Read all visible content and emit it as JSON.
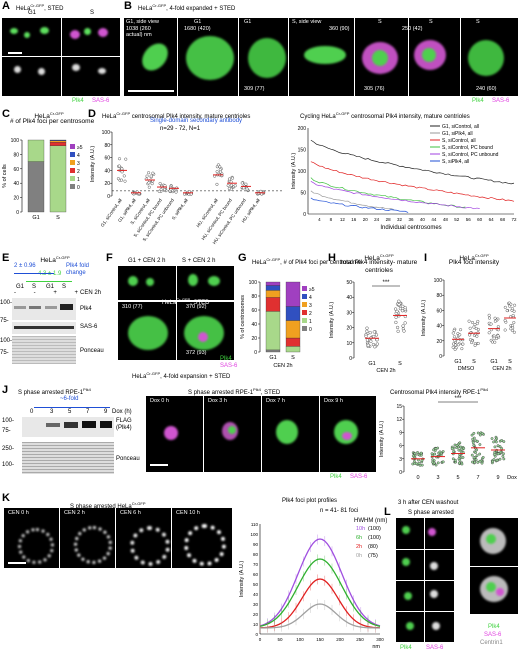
{
  "panels": {
    "A": {
      "letter": "A",
      "title": "HeLa",
      "title_sup": "Cr-GFP",
      "title_suffix": ", STED",
      "cols": [
        "G1",
        "S"
      ],
      "channels": [
        "Plk4",
        "SAS-6"
      ]
    },
    "B": {
      "letter": "B",
      "title": "HeLa",
      "title_sup": "Cr-GFP",
      "title_suffix": ", 4-fold expanded + STED",
      "tiles": [
        {
          "top": "G1, side view",
          "dim": "1038 (260 actual) nm"
        },
        {
          "top": "G1",
          "dim": "1680 (420)"
        },
        {
          "top": "G1",
          "dim": "309 (77)"
        },
        {
          "top": "S, side view",
          "dim": "360 (90)"
        },
        {
          "top": "S",
          "dim": "305 (76)"
        },
        {
          "top": "S",
          "dim": "250 (42)"
        },
        {
          "top": "S",
          "dim": "240 (60)"
        }
      ],
      "channels": [
        "Plk4",
        "SAS-6"
      ]
    },
    "C": {
      "letter": "C",
      "title": "HeLa",
      "title_sup": "Cr-GFP",
      "subtitle": "# of Plk4 foci per centrosome",
      "ylabel": "% of cells",
      "xcats": [
        "G1",
        "S"
      ],
      "legend": [
        "≥5",
        "4",
        "3",
        "2",
        "1",
        "0"
      ]
    },
    "D": {
      "letter": "D",
      "title": "HeLa",
      "title_sup": "Cr-GFP",
      "title_suffix": " centrosomal Plk4 intensity, mature centrioles",
      "note1": "Single-domain secondary antibody",
      "note2": "n=29 - 72, N=1",
      "ylabel": "Intensity (A.U.)",
      "cats": [
        "G1, siControl, all",
        "G1, siPlk4, all",
        "S, siControl, all",
        "S, siControl, PC bound",
        "S, siControl, PC unbound",
        "S, siPlk4, all",
        "HU, siControl, all",
        "HU, siControl, PC bound",
        "HU, siControl, PC unbound",
        "HU, siPlk4, all"
      ],
      "right_title": "Cycling HeLa",
      "right_sup": "Cr-GFP",
      "right_suffix": " centrosomal Plk4 intensity, mature centrioles",
      "right_xlabel": "Individual centrosomes",
      "right_legend": [
        "G1, siControl, all",
        "G1, siPlk4, all",
        "S, siControl, all",
        "S, siControl, PC bound",
        "S, siControl, PC unbound",
        "S, siPlk4, all"
      ]
    },
    "E": {
      "letter": "E",
      "title": "HeLa",
      "title_sup": "Cr-GFP",
      "fold1": "2 ± 0.96",
      "fold_label": "Plk4 fold change",
      "fold2": "4.3 ± 1.9",
      "lanes": [
        "G1",
        "S",
        "G1",
        "S"
      ],
      "cen": "CEN 2h",
      "markers": [
        "100-",
        "75-",
        "100-",
        "75-"
      ],
      "bands": [
        "Plk4",
        "SAS-6",
        "Ponceau"
      ]
    },
    "F": {
      "letter": "F",
      "lab1": "G1 + CEN 2 h",
      "lab2": "S + CEN 2 h",
      "dim1": "310 (77)",
      "dim2": "370 (92)",
      "dim3": "372 (93)",
      "caption": "HeLa",
      "caption_sup": "Cr-GFP",
      "caption_suffix": ", 4-fold expansion + STED",
      "caption2": "HeLa",
      "caption2_sup": "Cr-GFP",
      "caption2_suffix": ", STED",
      "channels": [
        "Plk4",
        "SAS-6"
      ]
    },
    "G": {
      "letter": "G",
      "title": "HeLa",
      "title_sup": "Cr-GFP",
      "title_suffix": ", # of Plk4 foci per centrosome",
      "ylabel": "% of centrosomes",
      "xcats": [
        "G1",
        "S"
      ],
      "xlabel": "CEN 2h",
      "legend": [
        "≥5",
        "4",
        "3",
        "2",
        "1",
        "0"
      ]
    },
    "H": {
      "letter": "H",
      "title": "HeLa",
      "title_sup": "Cr-GFP",
      "subtitle": "total Plk4 intensity- mature centrioles",
      "ylabel": "Intensity (A.U.)",
      "xcats": [
        "G1",
        "S"
      ],
      "xlabel": "CEN 2h",
      "sig": "***"
    },
    "I": {
      "letter": "I",
      "title": "HeLa",
      "title_sup": "Cr-GFP",
      "subtitle": "Plk4 foci intensity",
      "ylabel": "Intensity (A.U.)",
      "xcats": [
        "G1",
        "S",
        "G1",
        "S"
      ],
      "groups": [
        "DMSO",
        "CEN 2h"
      ]
    },
    "J": {
      "letter": "J",
      "title": "S phase arrested RPE-1",
      "title_sup": "Plk4",
      "fold": "~6-fold",
      "times": [
        "0",
        "3",
        "5",
        "7",
        "9"
      ],
      "dox": "Dox (h)",
      "markers": [
        "100-",
        "75-",
        "250-",
        "100-"
      ],
      "bands": [
        "FLAG (Plk4)",
        "Ponceau"
      ],
      "mid_title": "S phase arrested RPE-1",
      "mid_sup": "Plk4",
      "mid_suffix": ", STED",
      "tiles": [
        "Dox 0 h",
        "Dox 3 h",
        "Dox 7 h",
        "Dox 9 h"
      ],
      "channels": [
        "Plk4",
        "SAS-6"
      ],
      "right_title": "Centrosomal Plk4 intensity RPE-1",
      "right_sup": "Plk4",
      "right_ylabel": "Intensity (A.U.)",
      "right_xcats": [
        "0",
        "3",
        "5",
        "7",
        "9"
      ],
      "right_xlabel": "Dox",
      "sig": "***"
    },
    "K": {
      "letter": "K",
      "title": "S phase arrested HeLa",
      "title_sup": "Cr-GFP",
      "tiles": [
        "CEN 0 h",
        "CEN 2 h",
        "CEN 6 h",
        "CEN 10 h"
      ],
      "plot_title": "Plk4 foci plot profiles",
      "n": "n = 41- 81 foci",
      "ylabel": "Intensity (A.U.)",
      "xlabel": "nm",
      "hwhm_label": "HWHM (nm)",
      "legend": [
        {
          "t": "10h",
          "v": "(100)",
          "c": "#a050e0"
        },
        {
          "t": "6h",
          "v": "(100)",
          "c": "#30b030"
        },
        {
          "t": "2h",
          "v": "(80)",
          "c": "#e02020"
        },
        {
          "t": "0h",
          "v": "(75)",
          "c": "#a0a0a0"
        }
      ]
    },
    "L": {
      "letter": "L",
      "title": "3 h after CEN washout",
      "subtitle": "S phase arrested",
      "channels": [
        "Plk4",
        "SAS-6"
      ],
      "right_channels": [
        "Plk4",
        "SAS-6",
        "Centrin1"
      ]
    }
  },
  "chart_data": [
    {
      "type": "bar",
      "title": "# of Plk4 foci per centrosome",
      "categories": [
        "G1",
        "S"
      ],
      "ylabel": "% of cells",
      "ylim": [
        0,
        100
      ],
      "series": [
        {
          "name": "0",
          "values": [
            70,
            0
          ]
        },
        {
          "name": "1",
          "values": [
            30,
            92
          ]
        },
        {
          "name": "2",
          "values": [
            0,
            5
          ]
        },
        {
          "name": "3",
          "values": [
            0,
            2
          ]
        },
        {
          "name": "4",
          "values": [
            0,
            1
          ]
        },
        {
          "name": "≥5",
          "values": [
            0,
            0
          ]
        }
      ]
    },
    {
      "type": "bar",
      "title": "# of Plk4 foci per centrosome (CEN 2h)",
      "categories": [
        "G1",
        "S"
      ],
      "ylabel": "% of centrosomes",
      "ylim": [
        0,
        100
      ],
      "series": [
        {
          "name": "0",
          "values": [
            3,
            0
          ]
        },
        {
          "name": "1",
          "values": [
            55,
            8
          ]
        },
        {
          "name": "2",
          "values": [
            20,
            12
          ]
        },
        {
          "name": "3",
          "values": [
            10,
            25
          ]
        },
        {
          "name": "4",
          "values": [
            7,
            20
          ]
        },
        {
          "name": "≥5",
          "values": [
            5,
            35
          ]
        }
      ]
    },
    {
      "type": "line",
      "title": "Plk4 foci plot profiles",
      "xlabel": "nm",
      "ylabel": "Intensity (A.U.)",
      "ylim": [
        0,
        110
      ],
      "xlim": [
        0,
        300
      ],
      "series": [
        {
          "name": "10h",
          "peak": 95
        },
        {
          "name": "6h",
          "peak": 75
        },
        {
          "name": "2h",
          "peak": 55
        },
        {
          "name": "0h",
          "peak": 30
        }
      ]
    }
  ]
}
